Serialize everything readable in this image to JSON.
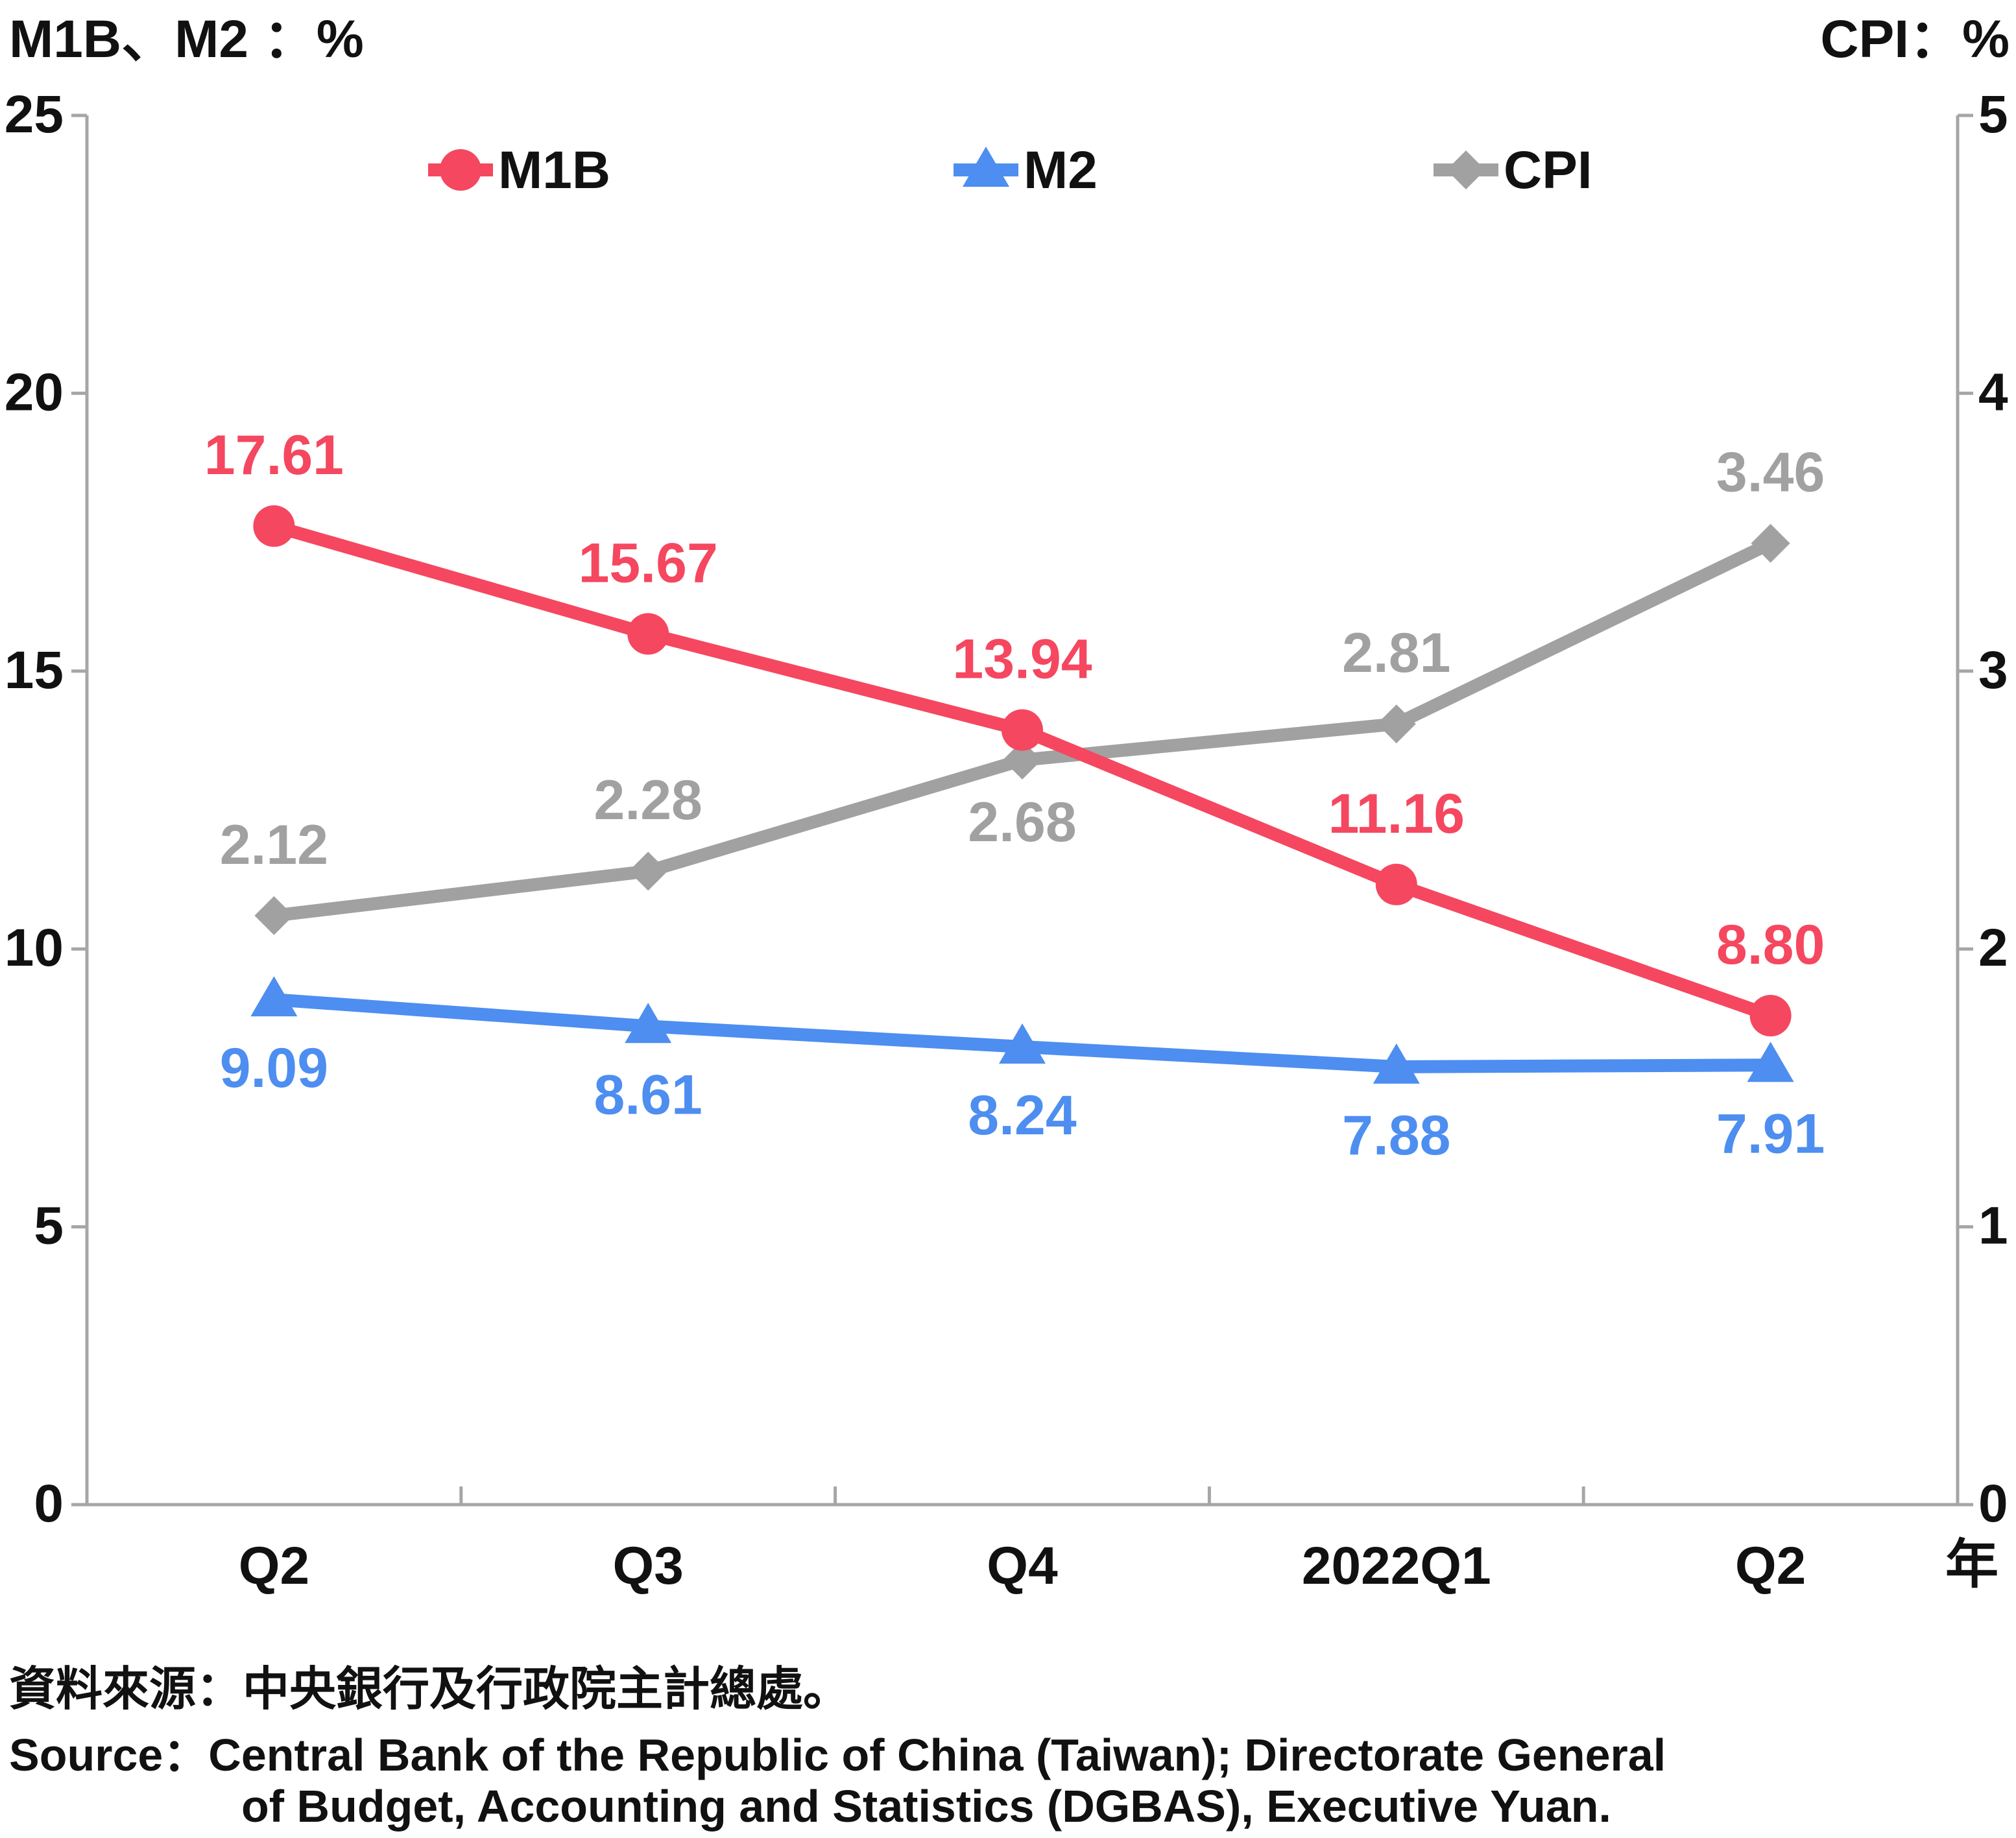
{
  "chart_data": {
    "type": "line",
    "categories": [
      "Q2",
      "Q3",
      "Q4",
      "2022Q1",
      "Q2"
    ],
    "left_axis_title": "M1B、M2 ：%",
    "right_axis_title": "CPI：%",
    "x_unit_label": "年",
    "left_ticks": [
      "0",
      "5",
      "10",
      "15",
      "20",
      "25"
    ],
    "right_ticks": [
      "0",
      "1",
      "2",
      "3",
      "4",
      "5"
    ],
    "left_ylim": [
      0,
      25
    ],
    "right_ylim": [
      0,
      5
    ],
    "grid": false,
    "legend_position": "top",
    "series": [
      {
        "name": "M1B",
        "axis": "left",
        "color": "#f5475f",
        "marker": "circle",
        "values": [
          17.61,
          15.67,
          13.94,
          11.16,
          8.8
        ],
        "labels": [
          "17.61",
          "15.67",
          "13.94",
          "11.16",
          "8.80"
        ]
      },
      {
        "name": "M2",
        "axis": "left",
        "color": "#4d8ef0",
        "marker": "triangle",
        "values": [
          9.09,
          8.61,
          8.24,
          7.88,
          7.91
        ],
        "labels": [
          "9.09",
          "8.61",
          "8.24",
          "7.88",
          "7.91"
        ]
      },
      {
        "name": "CPI",
        "axis": "right",
        "color": "#a1a1a1",
        "marker": "diamond",
        "values": [
          2.12,
          2.28,
          2.68,
          2.81,
          3.46
        ],
        "labels": [
          "2.12",
          "2.28",
          "2.68",
          "2.81",
          "3.46"
        ]
      }
    ]
  },
  "source": {
    "zh": "資料來源：中央銀行及行政院主計總處。",
    "en_line1": "Source：Central Bank of the Republic of China (Taiwan); Directorate General",
    "en_line2": "of Budget, Accounting and Statistics (DGBAS), Executive Yuan."
  }
}
